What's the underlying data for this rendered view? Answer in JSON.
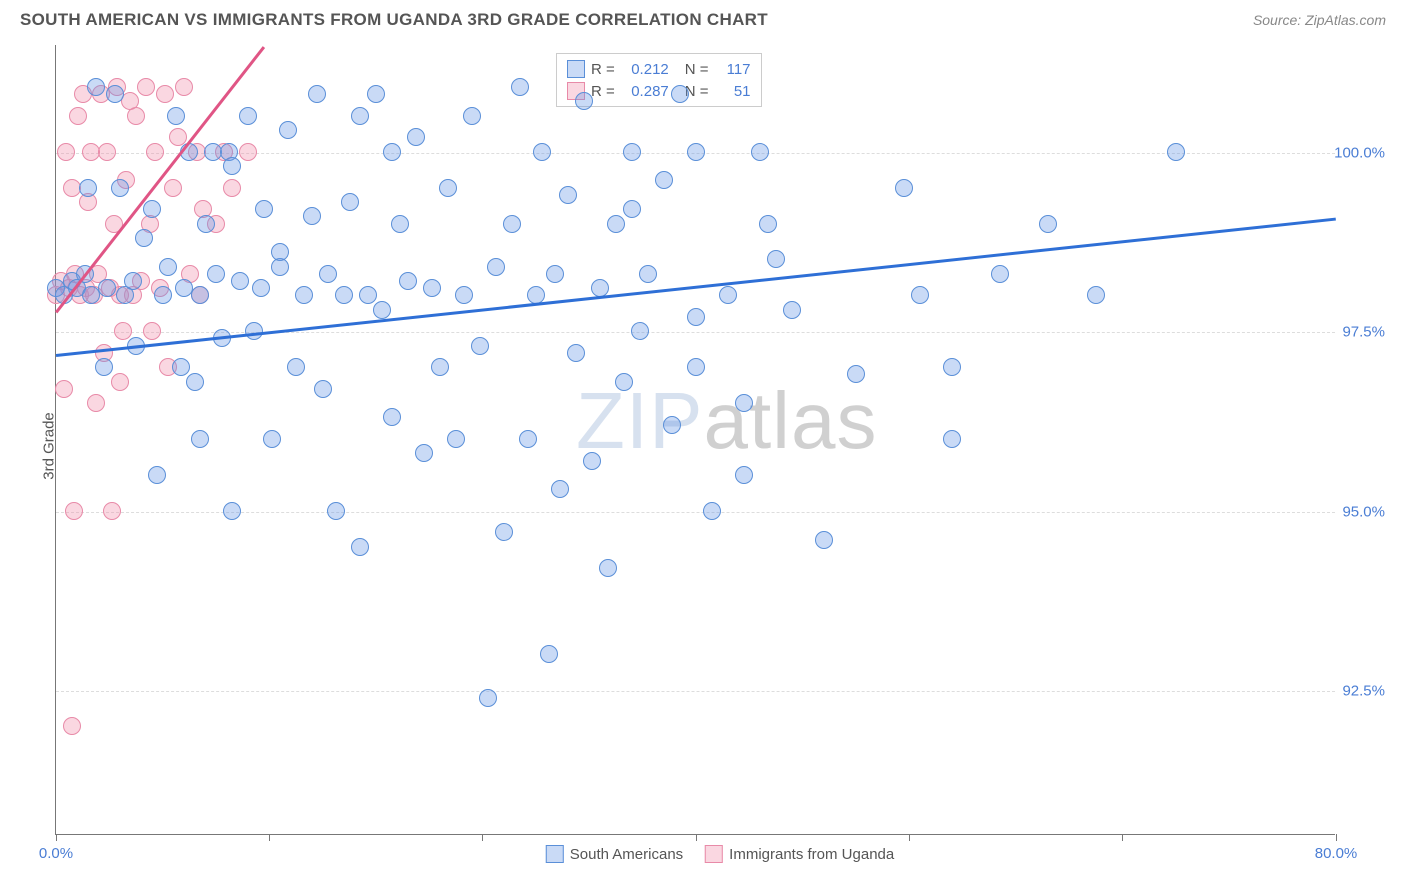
{
  "header": {
    "title": "SOUTH AMERICAN VS IMMIGRANTS FROM UGANDA 3RD GRADE CORRELATION CHART",
    "source": "Source: ZipAtlas.com"
  },
  "chart": {
    "type": "scatter",
    "ylabel": "3rd Grade",
    "xlim": [
      0,
      80
    ],
    "ylim": [
      90.5,
      101.5
    ],
    "background_color": "#ffffff",
    "grid_color": "#dddddd",
    "axis_color": "#777777",
    "tick_label_color": "#4a7dd4",
    "marker_radius": 9,
    "marker_opacity": 0.45,
    "yticks": [
      92.5,
      95.0,
      97.5,
      100.0
    ],
    "ytick_labels": [
      "92.5%",
      "95.0%",
      "97.5%",
      "100.0%"
    ],
    "xtick_positions": [
      0,
      13.3,
      26.6,
      40,
      53.3,
      66.6,
      80
    ],
    "xtick_labels_shown": {
      "0": "0.0%",
      "80": "80.0%"
    },
    "series": [
      {
        "name": "South Americans",
        "color_fill": "rgba(100,150,230,0.35)",
        "color_stroke": "#5a8fd8",
        "R": "0.212",
        "N": "117",
        "trend": {
          "x1": 0,
          "y1": 97.2,
          "x2": 80,
          "y2": 99.1,
          "color": "#2e6fd6",
          "width": 2.5
        }
      },
      {
        "name": "Immigrants from Uganda",
        "color_fill": "rgba(240,140,170,0.35)",
        "color_stroke": "#e88aa8",
        "R": "0.287",
        "N": "51",
        "trend": {
          "x1": 0,
          "y1": 97.8,
          "x2": 13,
          "y2": 101.5,
          "color": "#e05585",
          "width": 2.5
        }
      }
    ],
    "legend_top": {
      "R_label": "R =",
      "N_label": "N ="
    },
    "legend_bottom": [
      {
        "label": "South Americans",
        "fill": "rgba(100,150,230,0.35)",
        "stroke": "#5a8fd8"
      },
      {
        "label": "Immigrants from Uganda",
        "fill": "rgba(240,140,170,0.35)",
        "stroke": "#e88aa8"
      }
    ],
    "watermark": {
      "zip": "ZIP",
      "atlas": "atlas"
    }
  },
  "data_blue": [
    [
      0,
      98.1
    ],
    [
      0.5,
      98.0
    ],
    [
      1,
      98.2
    ],
    [
      1.3,
      98.1
    ],
    [
      1.8,
      98.3
    ],
    [
      2,
      99.5
    ],
    [
      2.2,
      98.0
    ],
    [
      2.5,
      100.9
    ],
    [
      3,
      97.0
    ],
    [
      3.2,
      98.1
    ],
    [
      3.7,
      100.8
    ],
    [
      4,
      99.5
    ],
    [
      4.3,
      98.0
    ],
    [
      4.8,
      98.2
    ],
    [
      5,
      97.3
    ],
    [
      5.5,
      98.8
    ],
    [
      6,
      99.2
    ],
    [
      6.3,
      95.5
    ],
    [
      6.7,
      98.0
    ],
    [
      7,
      98.4
    ],
    [
      7.5,
      100.5
    ],
    [
      7.8,
      97.0
    ],
    [
      8,
      98.1
    ],
    [
      8.3,
      100.0
    ],
    [
      8.7,
      96.8
    ],
    [
      9,
      98.0
    ],
    [
      9.4,
      99.0
    ],
    [
      9.8,
      100.0
    ],
    [
      10,
      98.3
    ],
    [
      10.4,
      97.4
    ],
    [
      10.8,
      100.0
    ],
    [
      11,
      95.0
    ],
    [
      11.5,
      98.2
    ],
    [
      12,
      100.5
    ],
    [
      12.4,
      97.5
    ],
    [
      12.8,
      98.1
    ],
    [
      13,
      99.2
    ],
    [
      13.5,
      96.0
    ],
    [
      14,
      98.4
    ],
    [
      14.5,
      100.3
    ],
    [
      15,
      97.0
    ],
    [
      15.5,
      98.0
    ],
    [
      16,
      99.1
    ],
    [
      16.3,
      100.8
    ],
    [
      16.7,
      96.7
    ],
    [
      17,
      98.3
    ],
    [
      17.5,
      95.0
    ],
    [
      18,
      98.0
    ],
    [
      18.4,
      99.3
    ],
    [
      19,
      94.5
    ],
    [
      19.5,
      98.0
    ],
    [
      20,
      100.8
    ],
    [
      20.4,
      97.8
    ],
    [
      21,
      96.3
    ],
    [
      21.5,
      99.0
    ],
    [
      22,
      98.2
    ],
    [
      22.5,
      100.2
    ],
    [
      23,
      95.8
    ],
    [
      23.5,
      98.1
    ],
    [
      24,
      97.0
    ],
    [
      24.5,
      99.5
    ],
    [
      25,
      96.0
    ],
    [
      25.5,
      98.0
    ],
    [
      26,
      100.5
    ],
    [
      26.5,
      97.3
    ],
    [
      27,
      92.4
    ],
    [
      27.5,
      98.4
    ],
    [
      28,
      94.7
    ],
    [
      28.5,
      99.0
    ],
    [
      29,
      100.9
    ],
    [
      29.5,
      96.0
    ],
    [
      30,
      98.0
    ],
    [
      30.4,
      100.0
    ],
    [
      30.8,
      93.0
    ],
    [
      31.2,
      98.3
    ],
    [
      31.5,
      95.3
    ],
    [
      32,
      99.4
    ],
    [
      32.5,
      97.2
    ],
    [
      33,
      100.7
    ],
    [
      33.5,
      95.7
    ],
    [
      34,
      98.1
    ],
    [
      34.5,
      94.2
    ],
    [
      35,
      99.0
    ],
    [
      35.5,
      96.8
    ],
    [
      36,
      100.0
    ],
    [
      36.5,
      97.5
    ],
    [
      37,
      98.3
    ],
    [
      38,
      99.6
    ],
    [
      38.5,
      96.2
    ],
    [
      39,
      100.8
    ],
    [
      40,
      97.0
    ],
    [
      41,
      95.0
    ],
    [
      42,
      98.0
    ],
    [
      43,
      96.5
    ],
    [
      44,
      100.0
    ],
    [
      44.5,
      99.0
    ],
    [
      45,
      98.5
    ],
    [
      46,
      97.8
    ],
    [
      50,
      96.9
    ],
    [
      54,
      98.0
    ],
    [
      56,
      97.0
    ],
    [
      59,
      98.3
    ],
    [
      62,
      99.0
    ],
    [
      65,
      98.0
    ],
    [
      70,
      100.0
    ],
    [
      48,
      94.6
    ],
    [
      53,
      99.5
    ],
    [
      36,
      99.2
    ],
    [
      40,
      100.0
    ],
    [
      56,
      96.0
    ],
    [
      40,
      97.7
    ],
    [
      43,
      95.5
    ],
    [
      11,
      99.8
    ],
    [
      19,
      100.5
    ],
    [
      21,
      100.0
    ],
    [
      14,
      98.6
    ],
    [
      9,
      96.0
    ]
  ],
  "data_pink": [
    [
      0,
      98.0
    ],
    [
      0.3,
      98.2
    ],
    [
      0.6,
      100.0
    ],
    [
      0.8,
      98.1
    ],
    [
      1.0,
      99.5
    ],
    [
      1.2,
      98.3
    ],
    [
      1.4,
      100.5
    ],
    [
      1.5,
      98.0
    ],
    [
      1.7,
      100.8
    ],
    [
      1.9,
      98.1
    ],
    [
      2.0,
      99.3
    ],
    [
      2.2,
      100.0
    ],
    [
      2.4,
      98.0
    ],
    [
      2.6,
      98.3
    ],
    [
      2.8,
      100.8
    ],
    [
      3.0,
      97.2
    ],
    [
      3.2,
      100.0
    ],
    [
      3.4,
      98.1
    ],
    [
      3.6,
      99.0
    ],
    [
      3.8,
      100.9
    ],
    [
      4.0,
      98.0
    ],
    [
      4.2,
      97.5
    ],
    [
      4.4,
      99.6
    ],
    [
      4.6,
      100.7
    ],
    [
      4.8,
      98.0
    ],
    [
      5.0,
      100.5
    ],
    [
      5.3,
      98.2
    ],
    [
      5.6,
      100.9
    ],
    [
      5.9,
      99.0
    ],
    [
      6.2,
      100.0
    ],
    [
      6.5,
      98.1
    ],
    [
      6.8,
      100.8
    ],
    [
      7.0,
      97.0
    ],
    [
      7.3,
      99.5
    ],
    [
      7.6,
      100.2
    ],
    [
      8.0,
      100.9
    ],
    [
      8.4,
      98.3
    ],
    [
      8.8,
      100.0
    ],
    [
      9.2,
      99.2
    ],
    [
      2.5,
      96.5
    ],
    [
      1.1,
      95.0
    ],
    [
      3.5,
      95.0
    ],
    [
      1.0,
      92.0
    ],
    [
      0.5,
      96.7
    ],
    [
      4.0,
      96.8
    ],
    [
      6.0,
      97.5
    ],
    [
      9.0,
      98.0
    ],
    [
      10,
      99.0
    ],
    [
      11,
      99.5
    ],
    [
      10.5,
      100.0
    ],
    [
      12,
      100.0
    ]
  ]
}
